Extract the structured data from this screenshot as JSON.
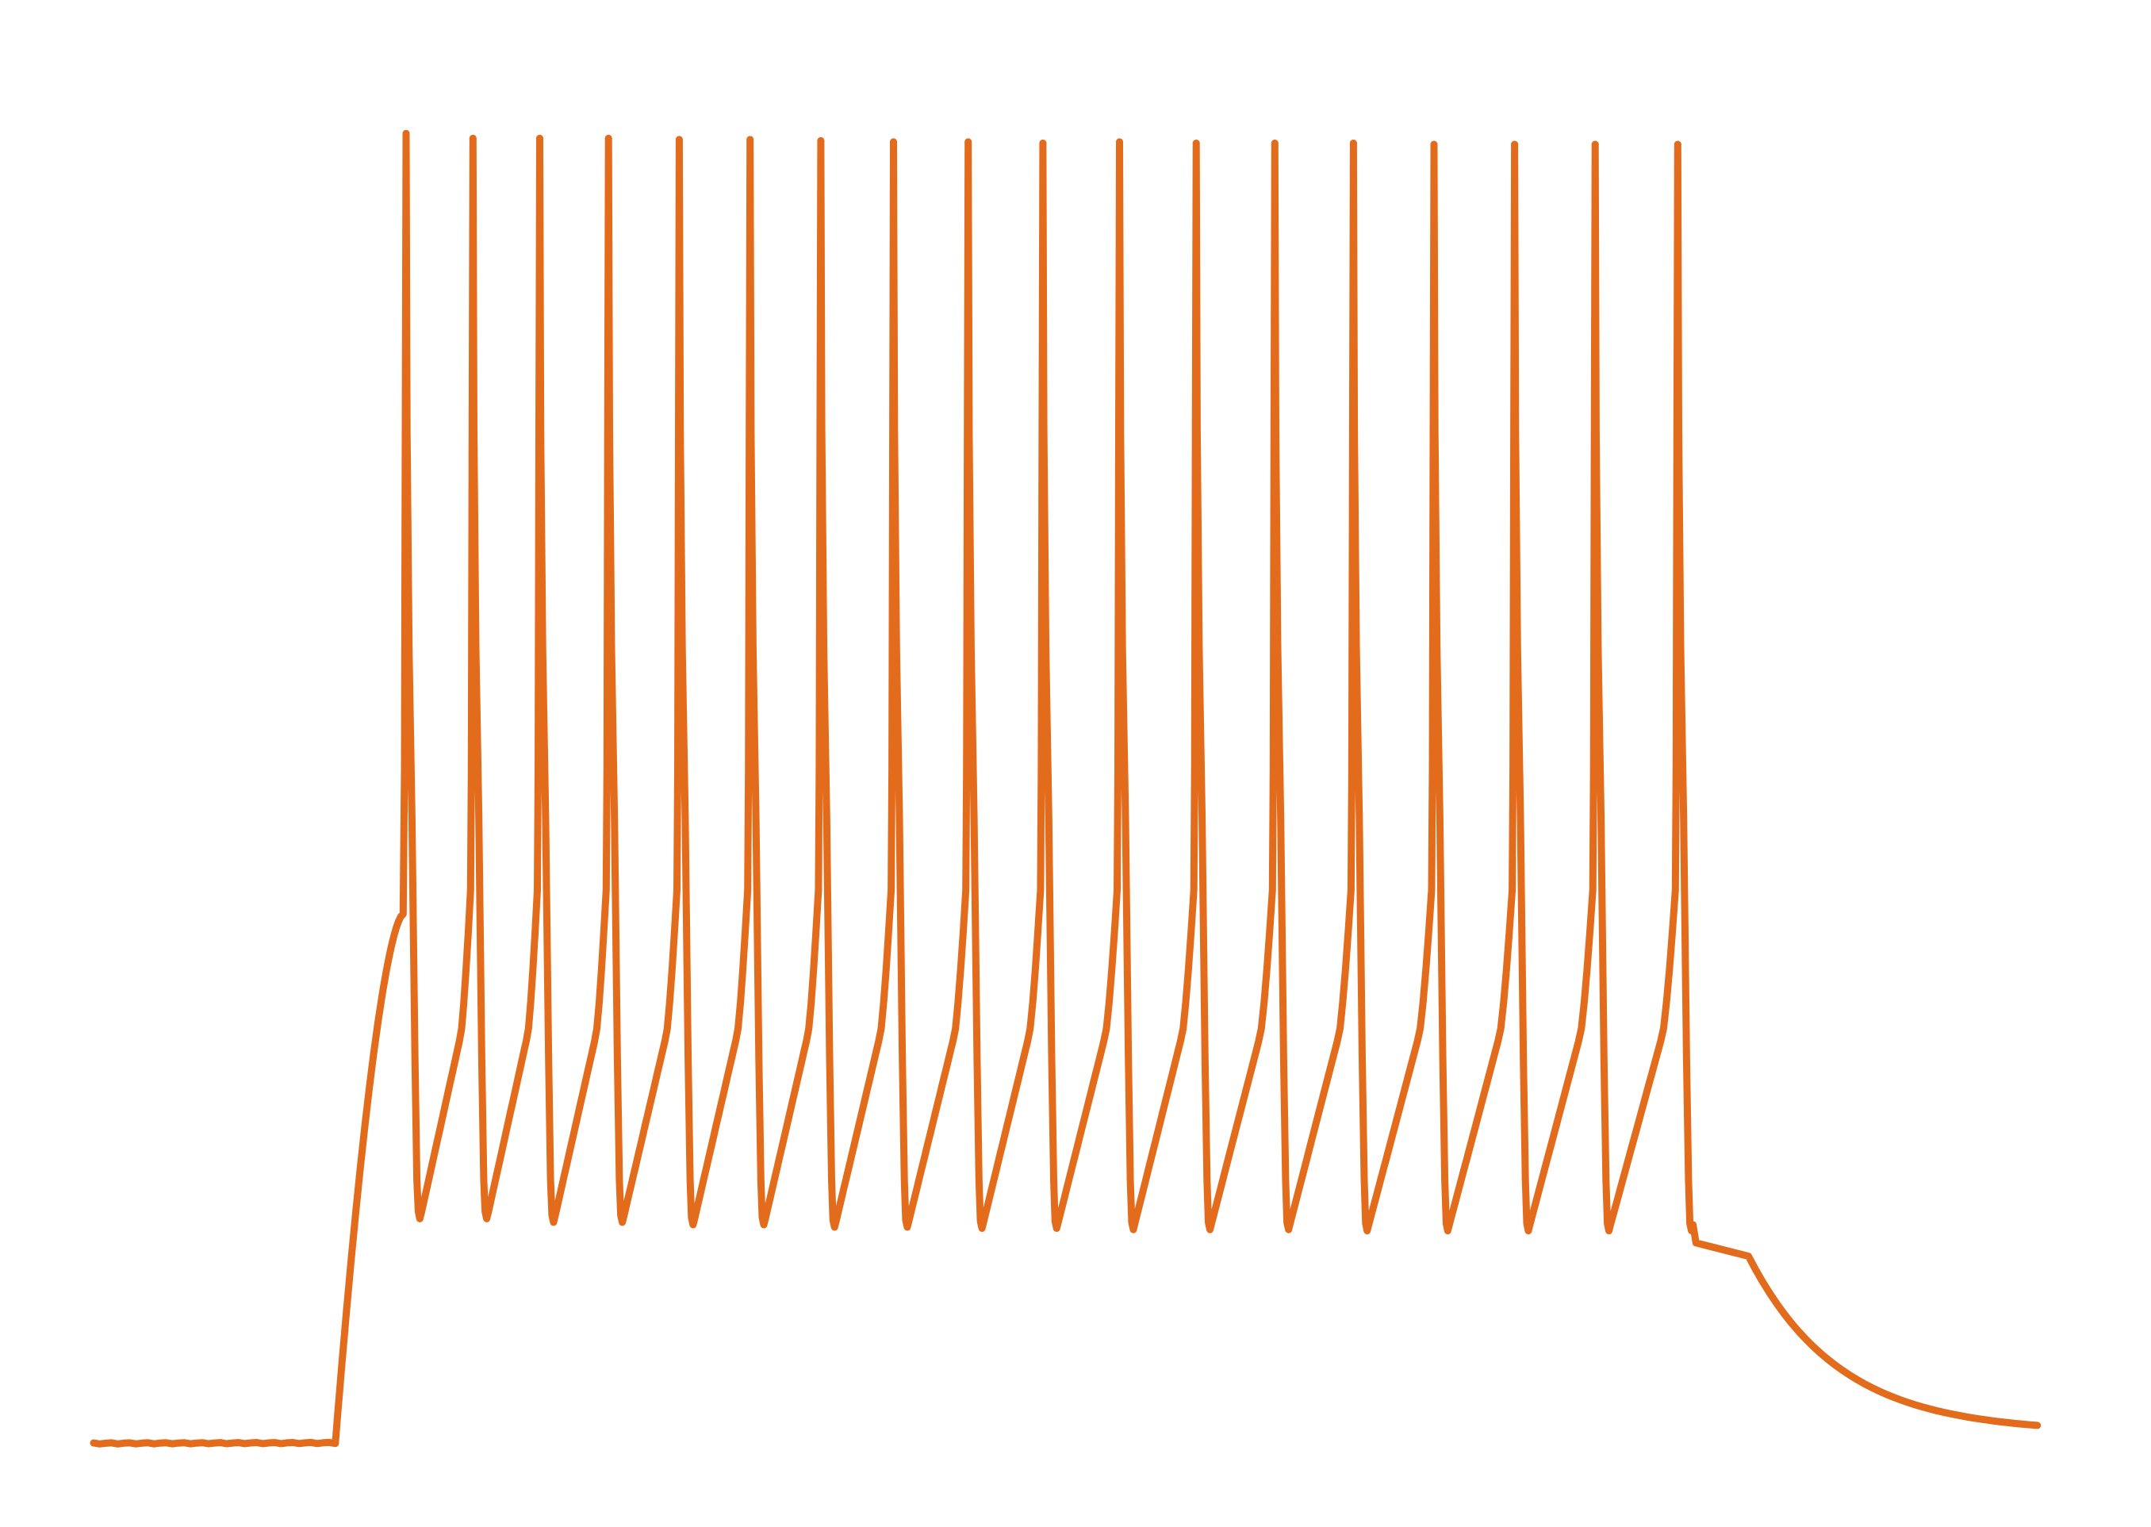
{
  "chart_data": {
    "type": "line",
    "title": "",
    "xlabel": "",
    "ylabel": "",
    "axes_visible": false,
    "grid": false,
    "legend": "none",
    "xlim": [
      0,
      100
    ],
    "ylim": [
      -75,
      40
    ],
    "series": [
      {
        "color": "#e36c1c",
        "baseline": -73.8,
        "stimulus_onset": 12.3,
        "stimulus_offset": 84.2,
        "end_value": -72.9,
        "spikes": [
          {
            "t": 15.9,
            "peak": 34.6,
            "trough": -55.2
          },
          {
            "t": 19.3,
            "peak": 34.2,
            "trough": -55.2
          },
          {
            "t": 22.7,
            "peak": 34.2,
            "trough": -55.5
          },
          {
            "t": 26.2,
            "peak": 34.2,
            "trough": -55.5
          },
          {
            "t": 29.8,
            "peak": 34.1,
            "trough": -55.7
          },
          {
            "t": 33.4,
            "peak": 34.1,
            "trough": -55.7
          },
          {
            "t": 37.0,
            "peak": 34.0,
            "trough": -55.9
          },
          {
            "t": 40.7,
            "peak": 33.9,
            "trough": -55.9
          },
          {
            "t": 44.5,
            "peak": 33.9,
            "trough": -56.0
          },
          {
            "t": 48.3,
            "peak": 33.8,
            "trough": -56.0
          },
          {
            "t": 52.2,
            "peak": 33.9,
            "trough": -56.1
          },
          {
            "t": 56.1,
            "peak": 33.8,
            "trough": -56.1
          },
          {
            "t": 60.1,
            "peak": 33.8,
            "trough": -56.1
          },
          {
            "t": 64.1,
            "peak": 33.8,
            "trough": -56.2
          },
          {
            "t": 68.2,
            "peak": 33.7,
            "trough": -56.2
          },
          {
            "t": 72.3,
            "peak": 33.7,
            "trough": -56.2
          },
          {
            "t": 76.4,
            "peak": 33.7,
            "trough": -56.2
          },
          {
            "t": 80.6,
            "peak": 33.7,
            "trough": -56.2
          }
        ]
      }
    ]
  }
}
